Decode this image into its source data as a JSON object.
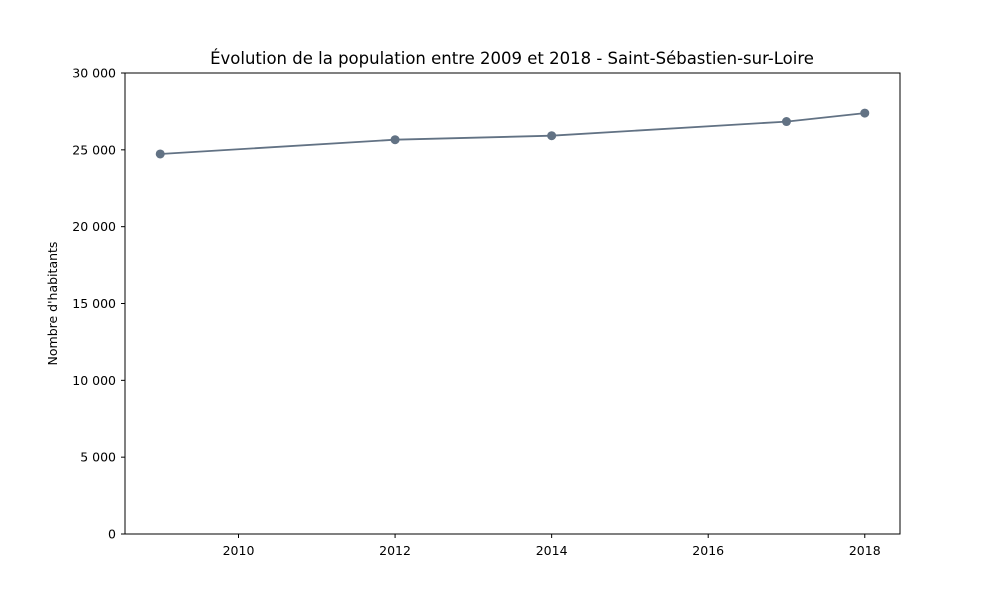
{
  "chart_data": {
    "type": "line",
    "title": "Évolution de la population entre 2009 et 2018 - Saint-Sébastien-sur-Loire",
    "xlabel": "",
    "ylabel": "Nombre d'habitants",
    "xlim": [
      2008.55,
      2018.45
    ],
    "ylim": [
      0,
      30000
    ],
    "x_ticks": [
      2010,
      2012,
      2014,
      2016,
      2018
    ],
    "x_tick_labels": [
      "2010",
      "2012",
      "2014",
      "2016",
      "2018"
    ],
    "y_ticks": [
      0,
      5000,
      10000,
      15000,
      20000,
      25000,
      30000
    ],
    "y_tick_labels": [
      "0",
      "5 000",
      "10 000",
      "15 000",
      "20 000",
      "25 000",
      "30 000"
    ],
    "grid": false,
    "legend": "none",
    "series": [
      {
        "color": "#627284",
        "x": [
          2009,
          2012,
          2014,
          2017,
          2018
        ],
        "y": [
          24730,
          25660,
          25920,
          26840,
          27390
        ]
      }
    ]
  }
}
